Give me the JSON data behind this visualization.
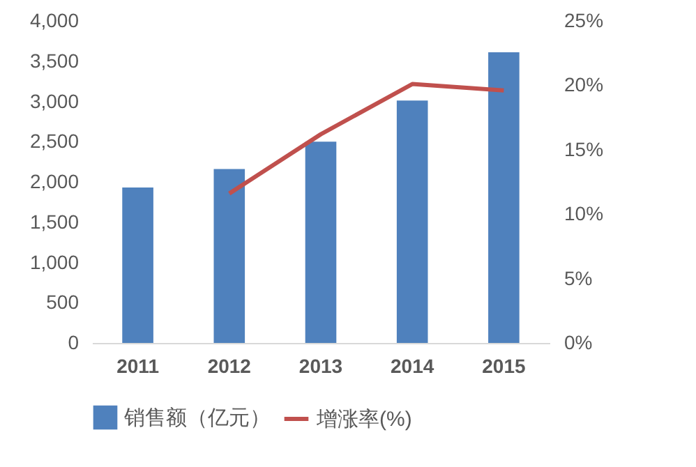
{
  "chart_data": {
    "type": "bar",
    "categories": [
      "2011",
      "2012",
      "2013",
      "2014",
      "2015"
    ],
    "series": [
      {
        "name": "销售额（亿元）",
        "color": "#4f81bd",
        "values": [
          1930,
          2160,
          2500,
          3010,
          3610
        ]
      },
      {
        "name": "增涨率(%)",
        "type": "line",
        "axis": "y2",
        "color": "#c0504d",
        "values": [
          null,
          11.6,
          16.2,
          20.1,
          19.6
        ]
      }
    ],
    "ylim": [
      0,
      4000
    ],
    "yticks": [
      0,
      {
        "value": 500,
        "label": "500"
      },
      {
        "value": 1000,
        "label": "1,000"
      },
      {
        "value": 1500,
        "label": "1,500"
      },
      {
        "value": 2000,
        "label": "2,000"
      },
      {
        "value": 2500,
        "label": "2,500"
      },
      {
        "value": 3000,
        "label": "3,000"
      },
      {
        "value": 3500,
        "label": "3,500"
      },
      {
        "value": 4000,
        "label": "4,000"
      }
    ],
    "y2lim": [
      0,
      25
    ],
    "y2ticks": [
      {
        "value": 0,
        "label": "0%"
      },
      {
        "value": 5,
        "label": "5%"
      },
      {
        "value": 10,
        "label": "10%"
      },
      {
        "value": 15,
        "label": "15%"
      },
      {
        "value": 20,
        "label": "20%"
      },
      {
        "value": 25,
        "label": "25%"
      }
    ],
    "legend": "bottom",
    "grid": false
  }
}
